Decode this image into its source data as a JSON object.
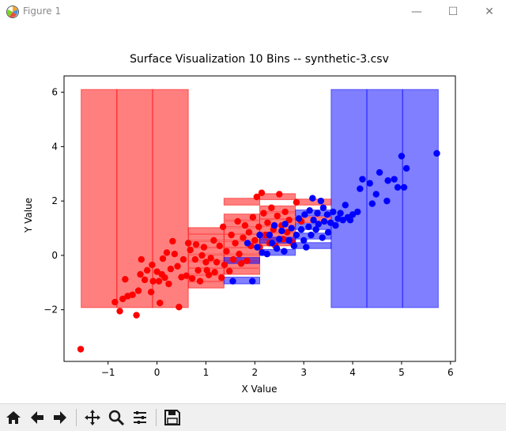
{
  "window": {
    "title": "Figure 1",
    "minimize_glyph": "—",
    "maximize_glyph": "☐",
    "close_glyph": "✕"
  },
  "toolbar": {
    "items": [
      "home-icon",
      "back-arrow-icon",
      "forward-arrow-icon",
      "pan-icon",
      "zoom-icon",
      "subplots-icon",
      "save-icon"
    ]
  },
  "colors": {
    "red": "#ff0000",
    "blue": "#0000ff",
    "red_fill": "#ff8080",
    "blue_fill": "#8080ff"
  },
  "chart_data": {
    "type": "scatter",
    "title": "Surface Visualization 10 Bins -- synthetic-3.csv",
    "xlabel": "X Value",
    "ylabel": "Y Value",
    "xlim": [
      -1.9,
      6.1
    ],
    "ylim": [
      -3.9,
      6.6
    ],
    "xticks": [
      -1,
      0,
      1,
      2,
      3,
      4,
      5,
      6
    ],
    "yticks": [
      -2,
      0,
      2,
      4,
      6
    ],
    "grid": false,
    "legend": "none",
    "red_points": [
      [
        -1.56,
        -3.45
      ],
      [
        -0.86,
        -1.72
      ],
      [
        -0.76,
        -2.05
      ],
      [
        -0.7,
        -1.6
      ],
      [
        -0.65,
        -0.88
      ],
      [
        -0.6,
        -1.5
      ],
      [
        -0.5,
        -1.45
      ],
      [
        -0.42,
        -2.2
      ],
      [
        -0.38,
        -1.3
      ],
      [
        -0.34,
        -0.7
      ],
      [
        -0.32,
        -0.15
      ],
      [
        -0.25,
        -0.9
      ],
      [
        -0.2,
        -0.55
      ],
      [
        -0.12,
        -1.35
      ],
      [
        -0.1,
        -0.35
      ],
      [
        -0.08,
        -0.95
      ],
      [
        0.0,
        -0.6
      ],
      [
        0.04,
        -0.95
      ],
      [
        0.06,
        -1.75
      ],
      [
        0.1,
        -0.7
      ],
      [
        0.12,
        -0.12
      ],
      [
        0.16,
        -0.82
      ],
      [
        0.2,
        0.1
      ],
      [
        0.24,
        -1.05
      ],
      [
        0.28,
        -0.5
      ],
      [
        0.32,
        0.52
      ],
      [
        0.36,
        0.05
      ],
      [
        0.42,
        -0.4
      ],
      [
        0.45,
        -1.9
      ],
      [
        0.5,
        -0.8
      ],
      [
        0.54,
        -0.15
      ],
      [
        0.6,
        -0.75
      ],
      [
        0.64,
        0.45
      ],
      [
        0.68,
        0.2
      ],
      [
        0.72,
        -0.85
      ],
      [
        0.78,
        -0.15
      ],
      [
        0.8,
        0.4
      ],
      [
        0.84,
        -0.55
      ],
      [
        0.88,
        -0.95
      ],
      [
        0.92,
        0.0
      ],
      [
        0.96,
        0.3
      ],
      [
        1.0,
        -0.25
      ],
      [
        1.02,
        -0.55
      ],
      [
        1.06,
        -0.72
      ],
      [
        1.1,
        -0.1
      ],
      [
        1.16,
        0.55
      ],
      [
        1.18,
        -0.62
      ],
      [
        1.22,
        -0.25
      ],
      [
        1.28,
        0.35
      ],
      [
        1.32,
        -0.82
      ],
      [
        1.35,
        1.05
      ],
      [
        1.38,
        -0.35
      ],
      [
        1.42,
        0.15
      ],
      [
        1.48,
        -0.58
      ],
      [
        1.52,
        0.75
      ],
      [
        1.56,
        -0.15
      ],
      [
        1.6,
        0.45
      ],
      [
        1.65,
        1.25
      ],
      [
        1.68,
        0.05
      ],
      [
        1.72,
        -0.3
      ],
      [
        1.76,
        0.65
      ],
      [
        1.8,
        1.1
      ],
      [
        1.84,
        -0.2
      ],
      [
        1.88,
        0.85
      ],
      [
        1.92,
        0.35
      ],
      [
        1.96,
        1.4
      ],
      [
        2.0,
        0.55
      ],
      [
        2.04,
        2.15
      ],
      [
        2.08,
        1.05
      ],
      [
        2.1,
        0.3
      ],
      [
        2.14,
        2.3
      ],
      [
        2.18,
        1.55
      ],
      [
        2.22,
        0.75
      ],
      [
        2.26,
        1.2
      ],
      [
        2.3,
        0.45
      ],
      [
        2.34,
        1.75
      ],
      [
        2.38,
        0.95
      ],
      [
        2.42,
        0.35
      ],
      [
        2.46,
        1.45
      ],
      [
        2.5,
        2.25
      ],
      [
        2.55,
        1.1
      ],
      [
        2.58,
        0.6
      ],
      [
        2.62,
        1.6
      ],
      [
        2.66,
        0.85
      ],
      [
        2.7,
        1.3
      ],
      [
        2.75,
        0.5
      ],
      [
        2.85,
        1.95
      ],
      [
        2.95,
        1.25
      ]
    ],
    "blue_points": [
      [
        1.55,
        -0.95
      ],
      [
        1.85,
        0.45
      ],
      [
        1.95,
        -0.95
      ],
      [
        2.05,
        0.3
      ],
      [
        2.1,
        0.75
      ],
      [
        2.15,
        0.1
      ],
      [
        2.25,
        0.05
      ],
      [
        2.3,
        0.75
      ],
      [
        2.35,
        0.45
      ],
      [
        2.4,
        1.1
      ],
      [
        2.45,
        0.25
      ],
      [
        2.5,
        0.6
      ],
      [
        2.55,
        0.9
      ],
      [
        2.6,
        0.15
      ],
      [
        2.62,
        1.15
      ],
      [
        2.7,
        0.55
      ],
      [
        2.75,
        1.0
      ],
      [
        2.8,
        0.35
      ],
      [
        2.85,
        0.75
      ],
      [
        2.9,
        1.35
      ],
      [
        2.95,
        0.95
      ],
      [
        3.0,
        0.55
      ],
      [
        3.02,
        1.5
      ],
      [
        3.05,
        0.3
      ],
      [
        3.1,
        1.05
      ],
      [
        3.12,
        1.65
      ],
      [
        3.15,
        0.75
      ],
      [
        3.18,
        2.1
      ],
      [
        3.2,
        1.3
      ],
      [
        3.25,
        0.95
      ],
      [
        3.28,
        1.55
      ],
      [
        3.3,
        1.15
      ],
      [
        3.35,
        2.0
      ],
      [
        3.38,
        0.65
      ],
      [
        3.4,
        1.75
      ],
      [
        3.42,
        1.25
      ],
      [
        3.48,
        1.5
      ],
      [
        3.5,
        0.85
      ],
      [
        3.55,
        1.2
      ],
      [
        3.6,
        1.6
      ],
      [
        3.65,
        1.1
      ],
      [
        3.7,
        1.35
      ],
      [
        3.75,
        1.55
      ],
      [
        3.8,
        1.3
      ],
      [
        3.85,
        1.85
      ],
      [
        3.9,
        1.4
      ],
      [
        3.95,
        1.3
      ],
      [
        4.0,
        1.5
      ],
      [
        4.1,
        1.6
      ],
      [
        4.15,
        2.45
      ],
      [
        4.2,
        2.8
      ],
      [
        4.35,
        2.65
      ],
      [
        4.4,
        1.9
      ],
      [
        4.48,
        2.25
      ],
      [
        4.55,
        3.05
      ],
      [
        4.7,
        2.0
      ],
      [
        4.72,
        2.75
      ],
      [
        4.85,
        2.8
      ],
      [
        4.92,
        2.5
      ],
      [
        5.0,
        3.65
      ],
      [
        5.05,
        2.5
      ],
      [
        5.1,
        3.2
      ],
      [
        5.72,
        3.75
      ]
    ],
    "red_bins": [
      [
        -1.55,
        -0.82,
        -1.92,
        6.1
      ],
      [
        -0.82,
        -0.09,
        -1.92,
        6.1
      ],
      [
        -0.09,
        0.64,
        -1.92,
        6.1
      ],
      [
        0.64,
        1.37,
        -1.2,
        -0.98
      ],
      [
        0.64,
        1.37,
        -0.95,
        -0.73
      ],
      [
        0.64,
        1.37,
        -0.7,
        -0.48
      ],
      [
        0.64,
        1.37,
        -0.45,
        -0.23
      ],
      [
        0.64,
        1.37,
        -0.2,
        0.02
      ],
      [
        0.64,
        1.37,
        0.05,
        0.27
      ],
      [
        0.64,
        1.37,
        0.3,
        0.52
      ],
      [
        0.64,
        1.37,
        0.55,
        0.77
      ],
      [
        0.64,
        1.37,
        0.8,
        1.02
      ],
      [
        1.37,
        2.1,
        -0.7,
        -0.48
      ],
      [
        1.37,
        2.1,
        -0.45,
        -0.23
      ],
      [
        1.37,
        2.1,
        -0.2,
        0.02
      ],
      [
        1.37,
        2.1,
        0.05,
        0.27
      ],
      [
        1.37,
        2.1,
        0.3,
        0.52
      ],
      [
        1.37,
        2.1,
        0.55,
        0.77
      ],
      [
        1.37,
        2.1,
        0.8,
        1.02
      ],
      [
        1.37,
        2.1,
        1.05,
        1.27
      ],
      [
        1.37,
        2.1,
        1.3,
        1.52
      ],
      [
        1.37,
        2.1,
        1.85,
        2.1
      ],
      [
        2.1,
        2.83,
        0.35,
        0.57
      ],
      [
        2.1,
        2.83,
        0.6,
        0.82
      ],
      [
        2.1,
        2.83,
        0.85,
        1.07
      ],
      [
        2.1,
        2.83,
        1.1,
        1.32
      ],
      [
        2.1,
        2.83,
        1.35,
        1.57
      ],
      [
        2.1,
        2.83,
        1.6,
        1.82
      ],
      [
        2.1,
        2.83,
        2.05,
        2.27
      ],
      [
        2.83,
        3.56,
        1.2,
        1.42
      ],
      [
        2.83,
        3.56,
        1.85,
        2.07
      ]
    ],
    "blue_bins": [
      [
        3.56,
        4.29,
        -1.92,
        6.1
      ],
      [
        4.29,
        5.02,
        -1.92,
        6.1
      ],
      [
        5.02,
        5.75,
        -1.92,
        6.1
      ],
      [
        1.37,
        2.1,
        -1.05,
        -0.8
      ],
      [
        1.37,
        2.1,
        -0.3,
        -0.08
      ],
      [
        2.1,
        2.83,
        0.0,
        0.22
      ],
      [
        2.1,
        2.83,
        0.45,
        0.67
      ],
      [
        2.83,
        3.56,
        0.25,
        0.47
      ],
      [
        2.83,
        3.56,
        0.6,
        0.82
      ],
      [
        2.83,
        3.56,
        0.95,
        1.17
      ],
      [
        2.83,
        3.56,
        1.45,
        1.67
      ]
    ]
  }
}
